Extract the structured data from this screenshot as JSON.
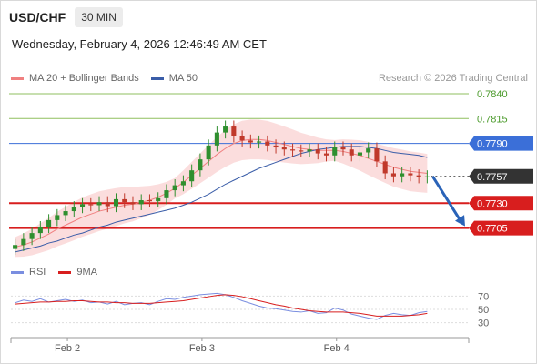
{
  "header": {
    "symbol": "USD/CHF",
    "timeframe": "30 MIN"
  },
  "datetime": "Wednesday, February 4, 2026 12:46:49 AM CET",
  "legend": {
    "ma20_bb": "MA 20 + Bollinger Bands",
    "ma50": "MA 50",
    "credit": "Research © 2026 Trading Central"
  },
  "rsi_legend": {
    "rsi": "RSI",
    "ma9": "9MA"
  },
  "colors": {
    "bb_fill": "#fad2d2",
    "ma20": "#f08080",
    "ma50": "#3a5da8",
    "candle_up": "#2f8f2f",
    "candle_down": "#c0392b",
    "resistance": "#8fbf5f",
    "level_blue": "#3b6fd8",
    "support": "#d81e1e",
    "current": "#333333",
    "arrow": "#2a63b8",
    "rsi": "#7a8ee0",
    "rsi_ma": "#d81e1e"
  },
  "chart_data": [
    {
      "type": "candlestick",
      "symbol": "USD/CHF",
      "interval": "30 MIN",
      "x_ticks": [
        "Feb 2",
        "Feb 3",
        "Feb 4"
      ],
      "y_range": [
        0.768,
        0.785
      ],
      "series": [
        {
          "name": "MA 20",
          "values": [
            0.7686,
            0.7688,
            0.7691,
            0.7695,
            0.7699,
            0.7704,
            0.7708,
            0.7712,
            0.7716,
            0.7719,
            0.7722,
            0.7724,
            0.7726,
            0.7728,
            0.7729,
            0.7731,
            0.7733,
            0.7736,
            0.774,
            0.7745,
            0.7751,
            0.7758,
            0.7765,
            0.7772,
            0.7779,
            0.7785,
            0.779,
            0.7793,
            0.7794,
            0.7794,
            0.7793,
            0.7791,
            0.7789,
            0.7787,
            0.7785,
            0.7784,
            0.7783,
            0.7783,
            0.7783,
            0.7782,
            0.778,
            0.7778,
            0.7775,
            0.7772,
            0.7769,
            0.7766,
            0.7764,
            0.7762,
            0.7761,
            0.776
          ]
        },
        {
          "name": "MA 50",
          "values": [
            0.7681,
            0.7683,
            0.7685,
            0.7687,
            0.769,
            0.7692,
            0.7695,
            0.7698,
            0.77,
            0.7703,
            0.7706,
            0.7708,
            0.7711,
            0.7713,
            0.7715,
            0.7717,
            0.7719,
            0.7721,
            0.7723,
            0.7725,
            0.7728,
            0.7731,
            0.7735,
            0.7739,
            0.7744,
            0.7749,
            0.7753,
            0.7757,
            0.7761,
            0.7765,
            0.7768,
            0.7771,
            0.7774,
            0.7777,
            0.778,
            0.7782,
            0.7784,
            0.7785,
            0.7786,
            0.7787,
            0.7787,
            0.7787,
            0.7786,
            0.7785,
            0.7783,
            0.7781,
            0.778,
            0.7779,
            0.7778,
            0.7776
          ]
        }
      ],
      "levels": [
        {
          "value": 0.784,
          "label": "0.7840",
          "kind": "resistance"
        },
        {
          "value": 0.7815,
          "label": "0.7815",
          "kind": "resistance"
        },
        {
          "value": 0.779,
          "label": "0.7790",
          "kind": "level"
        },
        {
          "value": 0.7757,
          "label": "0.7757",
          "kind": "current"
        },
        {
          "value": 0.773,
          "label": "0.7730",
          "kind": "support"
        },
        {
          "value": 0.7705,
          "label": "0.7705",
          "kind": "support"
        }
      ],
      "forecast": {
        "from": 0.7757,
        "to": 0.7705,
        "direction": "down"
      },
      "closes": [
        0.7688,
        0.7694,
        0.77,
        0.7706,
        0.7713,
        0.7718,
        0.7722,
        0.7726,
        0.7729,
        0.7728,
        0.7731,
        0.7727,
        0.7734,
        0.7731,
        0.7729,
        0.7733,
        0.7732,
        0.7735,
        0.7743,
        0.7748,
        0.7752,
        0.7763,
        0.7774,
        0.7788,
        0.7801,
        0.7807,
        0.7797,
        0.7793,
        0.7791,
        0.7792,
        0.7788,
        0.7786,
        0.7784,
        0.7783,
        0.7782,
        0.7784,
        0.778,
        0.7778,
        0.7786,
        0.7784,
        0.7778,
        0.7781,
        0.7785,
        0.7772,
        0.776,
        0.7757,
        0.776,
        0.7758,
        0.7756,
        0.7757
      ]
    },
    {
      "type": "line",
      "name": "RSI",
      "y_ticks": [
        70,
        50,
        30
      ],
      "series": [
        {
          "name": "RSI",
          "values": [
            60,
            64,
            62,
            66,
            61,
            63,
            65,
            62,
            64,
            60,
            61,
            58,
            62,
            57,
            59,
            60,
            57,
            62,
            66,
            65,
            68,
            70,
            72,
            73,
            74,
            72,
            68,
            63,
            59,
            55,
            52,
            51,
            49,
            47,
            46,
            48,
            44,
            45,
            52,
            49,
            43,
            40,
            37,
            35,
            41,
            44,
            42,
            41,
            45,
            47
          ]
        },
        {
          "name": "9MA",
          "values": [
            58,
            59,
            60,
            61,
            61,
            62,
            62,
            63,
            63,
            62,
            61,
            61,
            60,
            60,
            59,
            59,
            59,
            60,
            61,
            62,
            63,
            65,
            67,
            69,
            71,
            72,
            71,
            69,
            66,
            63,
            60,
            57,
            55,
            52,
            50,
            48,
            47,
            46,
            46,
            46,
            45,
            44,
            42,
            40,
            40,
            40,
            40,
            41,
            42,
            44
          ]
        }
      ]
    }
  ]
}
